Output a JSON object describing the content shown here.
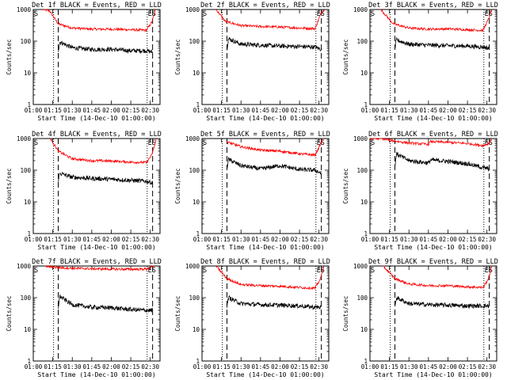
{
  "figure": {
    "xlabel": "Start Time (14-Dec-10 01:00:00)",
    "ylabel": "Counts/sec",
    "xticks": [
      "01:00",
      "01:15",
      "01:30",
      "01:45",
      "02:00",
      "02:15",
      "02:30"
    ],
    "yticks": [
      "1",
      "10",
      "100",
      "1000"
    ],
    "colors": {
      "events": "#000000",
      "lld": "#ff0000"
    }
  },
  "chart_data": [
    {
      "type": "line",
      "title": "Det 1f BLACK = Events, RED = LLD",
      "xlabel": "Start Time (14-Dec-10 01:00:00)",
      "ylabel": "Counts/sec",
      "ylim": [
        1,
        1000
      ],
      "yscale": "log",
      "markers": [
        "S",
        "ES"
      ],
      "vlines_dotted": [
        1.26,
        2.46
      ],
      "vlines_dashed": [
        1.32,
        2.53
      ],
      "series": [
        {
          "name": "LLD",
          "color": "red",
          "points": [
            [
              1.13,
              1000
            ],
            [
              1.21,
              900
            ],
            [
              1.32,
              350
            ],
            [
              1.5,
              260
            ],
            [
              1.75,
              240
            ],
            [
              2.0,
              240
            ],
            [
              2.25,
              230
            ],
            [
              2.45,
              220
            ],
            [
              2.52,
              400
            ],
            [
              2.57,
              1000
            ]
          ]
        },
        {
          "name": "Events",
          "color": "black",
          "points": [
            [
              1.32,
              50
            ],
            [
              1.34,
              95
            ],
            [
              1.5,
              62
            ],
            [
              1.75,
              55
            ],
            [
              2.0,
              55
            ],
            [
              2.25,
              50
            ],
            [
              2.45,
              50
            ],
            [
              2.53,
              45
            ]
          ]
        }
      ]
    },
    {
      "type": "line",
      "title": "Det 2f BLACK = Events, RED = LLD",
      "xlabel": "Start Time (14-Dec-10 01:00:00)",
      "ylabel": "Counts/sec",
      "ylim": [
        1,
        1000
      ],
      "yscale": "log",
      "markers": [
        "S",
        "ES"
      ],
      "vlines_dotted": [
        1.26,
        2.46
      ],
      "vlines_dashed": [
        1.32,
        2.53
      ],
      "series": [
        {
          "name": "LLD",
          "color": "red",
          "points": [
            [
              1.18,
              1000
            ],
            [
              1.3,
              420
            ],
            [
              1.5,
              310
            ],
            [
              1.75,
              290
            ],
            [
              2.0,
              280
            ],
            [
              2.25,
              260
            ],
            [
              2.45,
              250
            ],
            [
              2.53,
              800
            ],
            [
              2.57,
              1000
            ]
          ]
        },
        {
          "name": "Events",
          "color": "black",
          "points": [
            [
              1.32,
              60
            ],
            [
              1.34,
              120
            ],
            [
              1.5,
              80
            ],
            [
              1.75,
              75
            ],
            [
              2.0,
              70
            ],
            [
              2.25,
              68
            ],
            [
              2.45,
              65
            ],
            [
              2.53,
              55
            ]
          ]
        }
      ]
    },
    {
      "type": "line",
      "title": "Det 3f BLACK = Events, RED = LLD",
      "xlabel": "Start Time (14-Dec-10 01:00:00)",
      "ylabel": "Counts/sec",
      "ylim": [
        1,
        1000
      ],
      "yscale": "log",
      "markers": [
        "S",
        "ES"
      ],
      "vlines_dotted": [
        1.26,
        2.46
      ],
      "vlines_dashed": [
        1.32,
        2.53
      ],
      "series": [
        {
          "name": "LLD",
          "color": "red",
          "points": [
            [
              1.14,
              1000
            ],
            [
              1.3,
              350
            ],
            [
              1.5,
              260
            ],
            [
              1.75,
              240
            ],
            [
              2.0,
              245
            ],
            [
              2.25,
              230
            ],
            [
              2.45,
              220
            ],
            [
              2.52,
              500
            ],
            [
              2.56,
              1000
            ]
          ]
        },
        {
          "name": "Events",
          "color": "black",
          "points": [
            [
              1.32,
              60
            ],
            [
              1.34,
              110
            ],
            [
              1.5,
              80
            ],
            [
              1.75,
              75
            ],
            [
              2.0,
              72
            ],
            [
              2.25,
              70
            ],
            [
              2.45,
              65
            ],
            [
              2.53,
              60
            ]
          ]
        }
      ]
    },
    {
      "type": "line",
      "title": "Det 4f BLACK = Events, RED = LLD",
      "xlabel": "Start Time (14-Dec-10 01:00:00)",
      "ylabel": "Counts/sec",
      "ylim": [
        1,
        1000
      ],
      "yscale": "log",
      "markers": [
        "S",
        "ES"
      ],
      "vlines_dotted": [
        1.26,
        2.46
      ],
      "vlines_dashed": [
        1.32,
        2.53
      ],
      "series": [
        {
          "name": "LLD",
          "color": "red",
          "points": [
            [
              1.22,
              1000
            ],
            [
              1.32,
              400
            ],
            [
              1.5,
              230
            ],
            [
              1.75,
              200
            ],
            [
              2.0,
              195
            ],
            [
              2.25,
              180
            ],
            [
              2.45,
              175
            ],
            [
              2.52,
              300
            ],
            [
              2.58,
              1000
            ]
          ]
        },
        {
          "name": "Events",
          "color": "black",
          "points": [
            [
              1.32,
              50
            ],
            [
              1.34,
              80
            ],
            [
              1.5,
              60
            ],
            [
              1.75,
              55
            ],
            [
              2.0,
              52
            ],
            [
              2.25,
              48
            ],
            [
              2.45,
              45
            ],
            [
              2.53,
              40
            ]
          ]
        }
      ]
    },
    {
      "type": "line",
      "title": "Det 5f BLACK = Events, RED = LLD",
      "xlabel": "Start Time (14-Dec-10 01:00:00)",
      "ylabel": "Counts/sec",
      "ylim": [
        1,
        1000
      ],
      "yscale": "log",
      "markers": [
        "S",
        "ES"
      ],
      "vlines_dotted": [
        1.26,
        2.46
      ],
      "vlines_dashed": [
        1.32,
        2.53
      ],
      "series": [
        {
          "name": "LLD",
          "color": "red",
          "points": [
            [
              1.32,
              780
            ],
            [
              1.5,
              550
            ],
            [
              1.75,
              430
            ],
            [
              2.0,
              400
            ],
            [
              2.25,
              330
            ],
            [
              2.45,
              300
            ],
            [
              2.51,
              600
            ],
            [
              2.55,
              1000
            ]
          ]
        },
        {
          "name": "Events",
          "color": "black",
          "points": [
            [
              1.32,
              120
            ],
            [
              1.34,
              220
            ],
            [
              1.5,
              140
            ],
            [
              1.75,
              110
            ],
            [
              2.0,
              140
            ],
            [
              2.25,
              105
            ],
            [
              2.45,
              100
            ],
            [
              2.53,
              80
            ]
          ]
        }
      ]
    },
    {
      "type": "line",
      "title": "Det 6f BLACK = Events, RED = LLD",
      "xlabel": "Start Time (14-Dec-10 01:00:00)",
      "ylabel": "Counts/sec",
      "ylim": [
        1,
        1000
      ],
      "yscale": "log",
      "markers": [
        "S",
        "ES"
      ],
      "vlines_dotted": [
        1.26,
        2.46
      ],
      "vlines_dashed": [
        1.32,
        2.53
      ],
      "series": [
        {
          "name": "LLD",
          "color": "red",
          "points": [
            [
              1.0,
              1000
            ],
            [
              1.15,
              1000
            ],
            [
              1.3,
              850
            ],
            [
              1.5,
              720
            ],
            [
              1.75,
              660
            ],
            [
              1.78,
              800
            ],
            [
              2.0,
              760
            ],
            [
              2.25,
              700
            ],
            [
              2.45,
              600
            ],
            [
              2.52,
              700
            ],
            [
              2.56,
              1000
            ]
          ]
        },
        {
          "name": "Events",
          "color": "black",
          "points": [
            [
              1.32,
              140
            ],
            [
              1.34,
              330
            ],
            [
              1.5,
              200
            ],
            [
              1.75,
              170
            ],
            [
              1.78,
              210
            ],
            [
              2.0,
              190
            ],
            [
              2.25,
              160
            ],
            [
              2.45,
              120
            ],
            [
              2.53,
              110
            ]
          ]
        }
      ]
    },
    {
      "type": "line",
      "title": "Det 7f BLACK = Events, RED = LLD",
      "xlabel": "Start Time (14-Dec-10 01:00:00)",
      "ylabel": "Counts/sec",
      "ylim": [
        1,
        1000
      ],
      "yscale": "log",
      "markers": [
        "S",
        "ES"
      ],
      "vlines_dotted": [
        1.26,
        2.46
      ],
      "vlines_dashed": [
        1.32,
        2.53
      ],
      "series": [
        {
          "name": "LLD",
          "color": "red",
          "points": [
            [
              1.15,
              1000
            ],
            [
              1.3,
              900
            ],
            [
              1.5,
              850
            ],
            [
              1.75,
              820
            ],
            [
              2.0,
              800
            ],
            [
              2.25,
              790
            ],
            [
              2.45,
              800
            ],
            [
              2.55,
              1000
            ]
          ]
        },
        {
          "name": "Events",
          "color": "black",
          "points": [
            [
              1.32,
              50
            ],
            [
              1.34,
              110
            ],
            [
              1.5,
              60
            ],
            [
              1.75,
              50
            ],
            [
              2.0,
              48
            ],
            [
              2.25,
              42
            ],
            [
              2.45,
              40
            ],
            [
              2.53,
              40
            ]
          ]
        }
      ]
    },
    {
      "type": "line",
      "title": "Det 8f BLACK = Events, RED = LLD",
      "xlabel": "Start Time (14-Dec-10 01:00:00)",
      "ylabel": "Counts/sec",
      "ylim": [
        1,
        1000
      ],
      "yscale": "log",
      "markers": [
        "S",
        "ES"
      ],
      "vlines_dotted": [
        1.26,
        2.46
      ],
      "vlines_dashed": [
        1.32,
        2.53
      ],
      "series": [
        {
          "name": "LLD",
          "color": "red",
          "points": [
            [
              1.18,
              1000
            ],
            [
              1.32,
              400
            ],
            [
              1.5,
              260
            ],
            [
              1.75,
              240
            ],
            [
              2.0,
              230
            ],
            [
              2.25,
              210
            ],
            [
              2.45,
              200
            ],
            [
              2.52,
              400
            ],
            [
              2.56,
              1000
            ]
          ]
        },
        {
          "name": "Events",
          "color": "black",
          "points": [
            [
              1.32,
              55
            ],
            [
              1.34,
              100
            ],
            [
              1.5,
              65
            ],
            [
              1.75,
              60
            ],
            [
              2.0,
              58
            ],
            [
              2.25,
              55
            ],
            [
              2.45,
              50
            ],
            [
              2.53,
              50
            ]
          ]
        }
      ]
    },
    {
      "type": "line",
      "title": "Det 9f BLACK = Events, RED = LLD",
      "xlabel": "Start Time (14-Dec-10 01:00:00)",
      "ylabel": "Counts/sec",
      "ylim": [
        1,
        1000
      ],
      "yscale": "log",
      "markers": [
        "S",
        "ES"
      ],
      "vlines_dotted": [
        1.26,
        2.46
      ],
      "vlines_dashed": [
        1.32,
        2.53
      ],
      "series": [
        {
          "name": "LLD",
          "color": "red",
          "points": [
            [
              1.17,
              1000
            ],
            [
              1.32,
              400
            ],
            [
              1.5,
              270
            ],
            [
              1.75,
              240
            ],
            [
              2.0,
              240
            ],
            [
              2.25,
              220
            ],
            [
              2.45,
              210
            ],
            [
              2.52,
              400
            ],
            [
              2.56,
              1000
            ]
          ]
        },
        {
          "name": "Events",
          "color": "black",
          "points": [
            [
              1.32,
              55
            ],
            [
              1.34,
              100
            ],
            [
              1.5,
              65
            ],
            [
              1.75,
              60
            ],
            [
              2.0,
              58
            ],
            [
              2.25,
              55
            ],
            [
              2.45,
              55
            ],
            [
              2.53,
              55
            ]
          ]
        }
      ]
    }
  ]
}
